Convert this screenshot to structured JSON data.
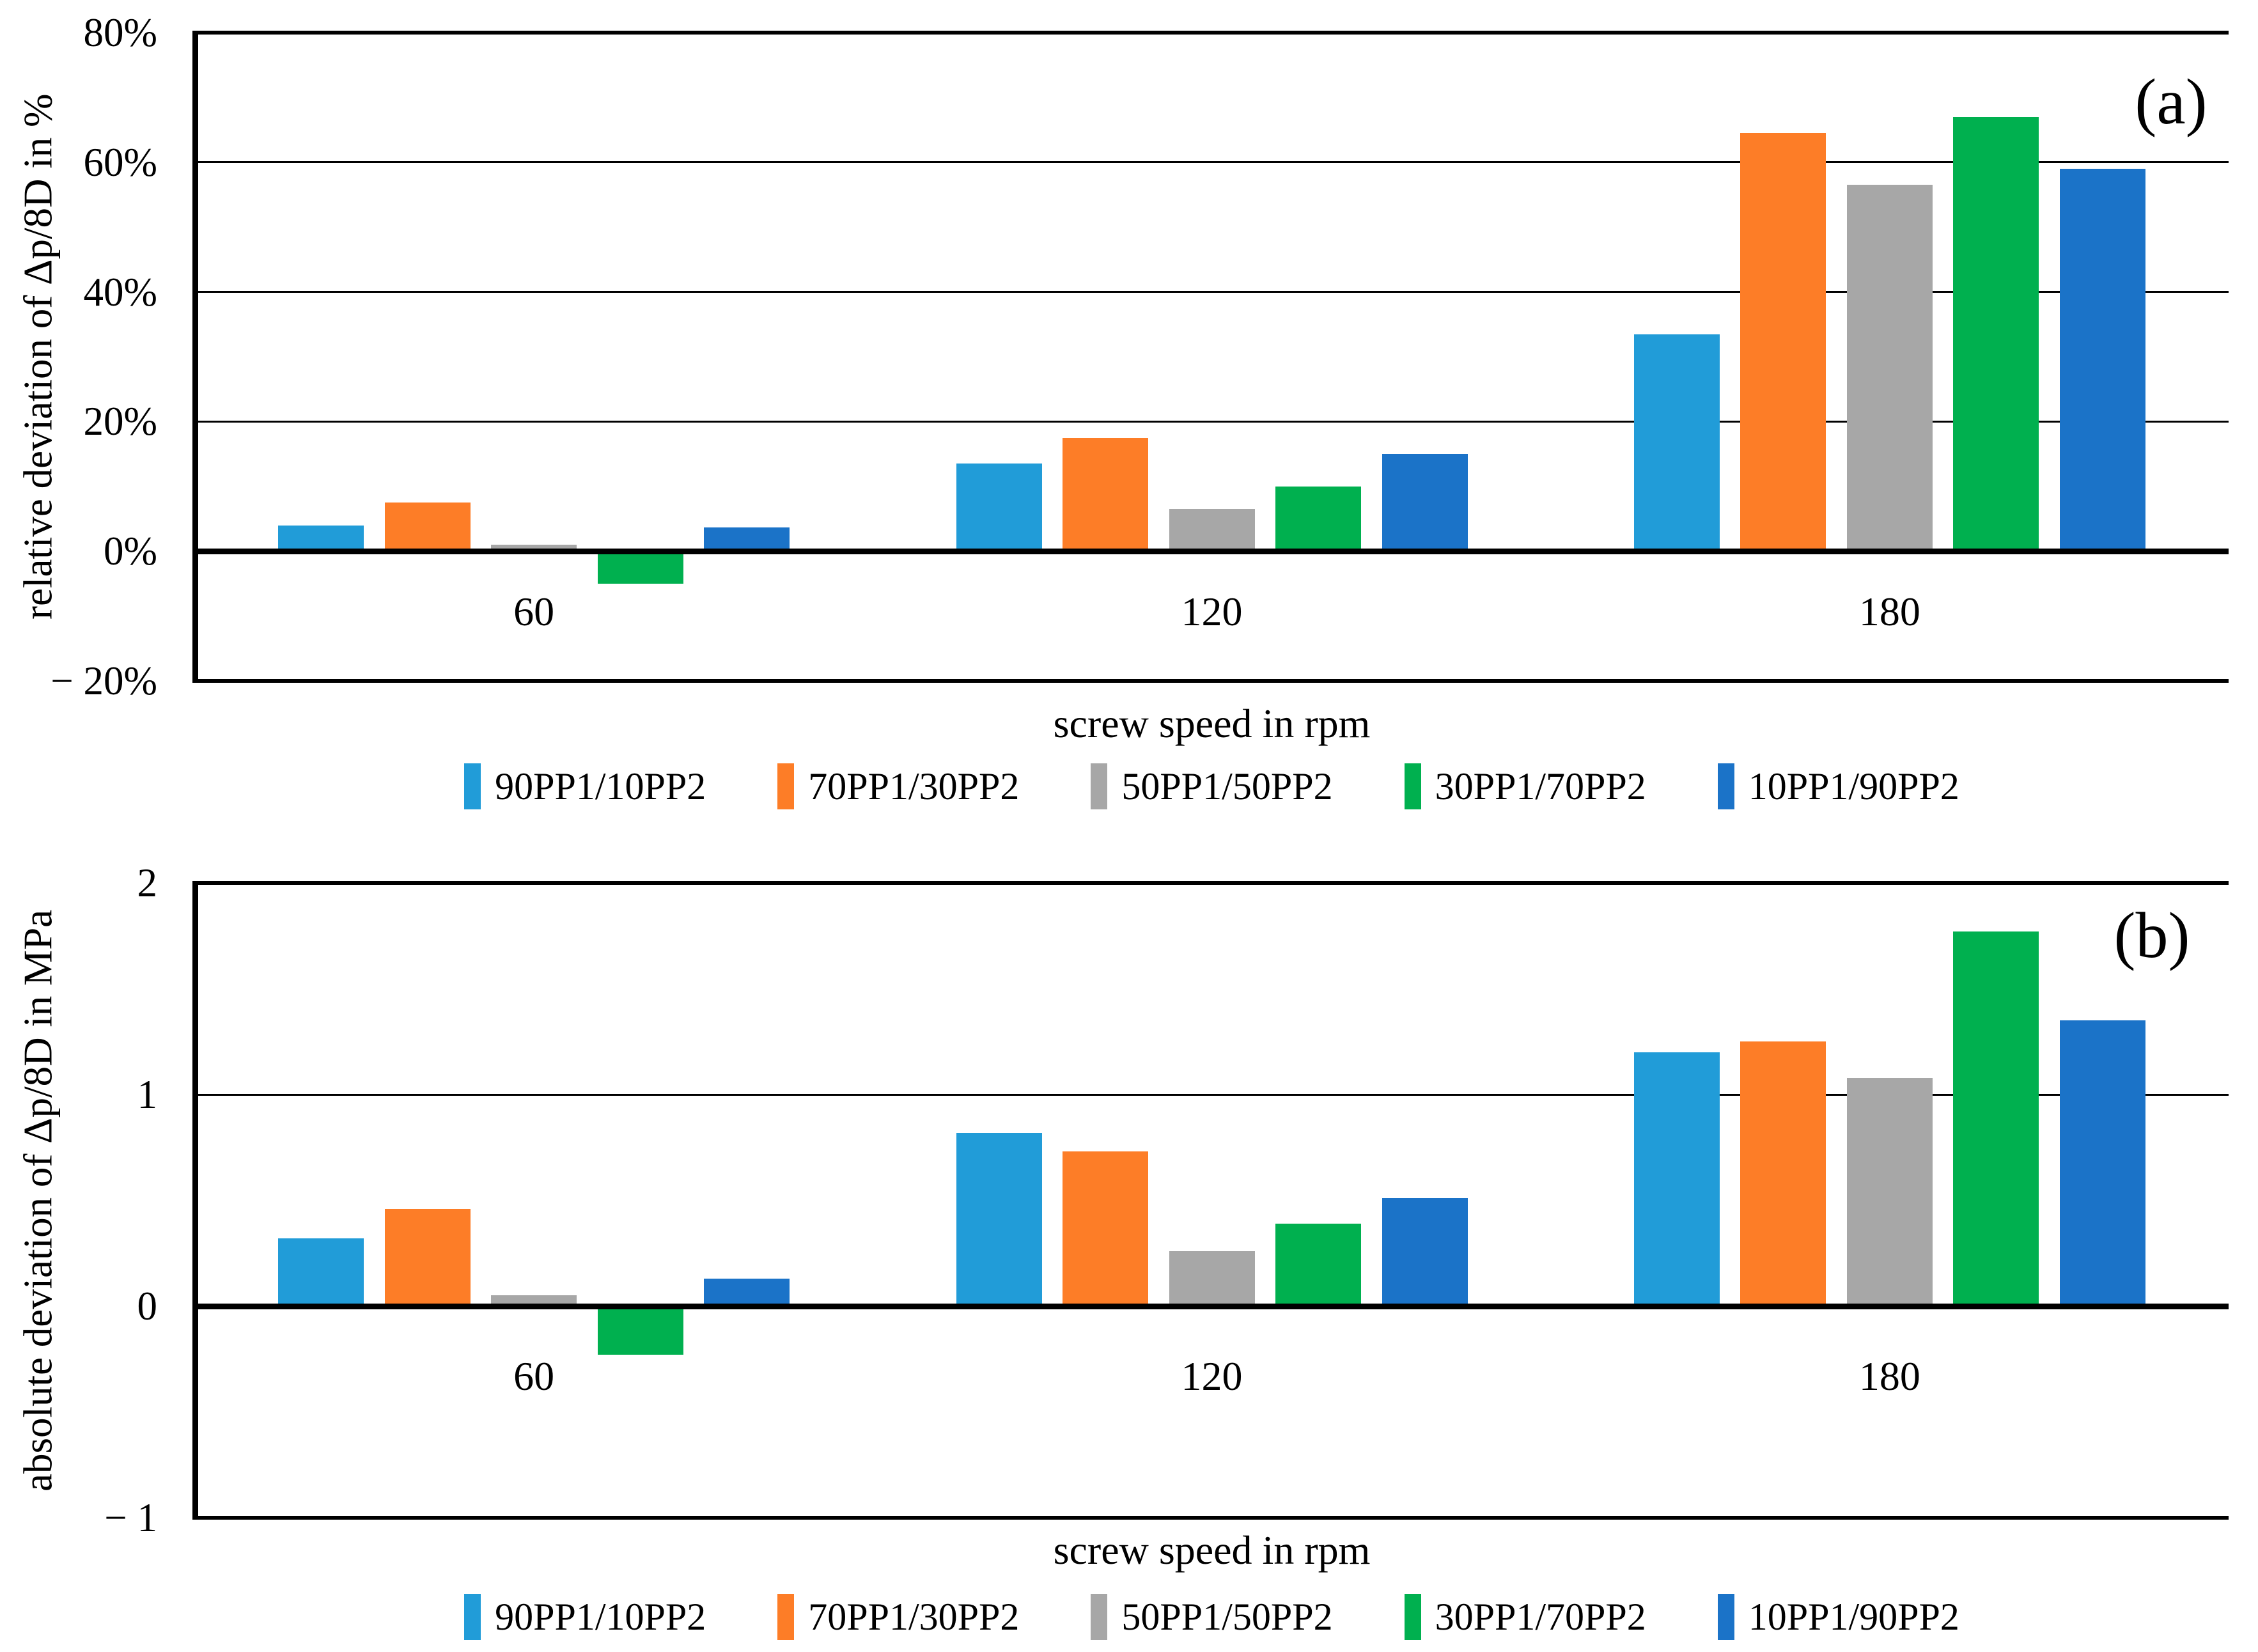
{
  "chart_data": [
    {
      "type": "bar",
      "panel": "(a)",
      "title": "",
      "xlabel": "screw speed in rpm",
      "ylabel": "relative deviation of Δp/8D in %",
      "categories": [
        "60",
        "120",
        "180"
      ],
      "series": [
        {
          "name": "90PP1/10PP2",
          "color": "#219CD8",
          "values": [
            4.0,
            13.5,
            33.5
          ]
        },
        {
          "name": "70PP1/30PP2",
          "color": "#FD7D27",
          "values": [
            7.5,
            17.5,
            64.5
          ]
        },
        {
          "name": "50PP1/50PP2",
          "color": "#A7A7A7",
          "values": [
            1.0,
            6.5,
            56.5
          ]
        },
        {
          "name": "30PP1/70PP2",
          "color": "#00B04F",
          "values": [
            -5.0,
            10.0,
            67.0
          ]
        },
        {
          "name": "10PP1/90PP2",
          "color": "#1B73C8",
          "values": [
            3.7,
            15.0,
            59.0
          ]
        }
      ],
      "ylim": [
        -20,
        80
      ],
      "ytick_step": 20,
      "ytick_labels": [
        "80%",
        "60%",
        "40%",
        "20%",
        "0%",
        "− 20%"
      ],
      "value_unit": "%",
      "grid": true,
      "legend_position": "bottom"
    },
    {
      "type": "bar",
      "panel": "(b)",
      "title": "",
      "xlabel": "screw speed in rpm",
      "ylabel": "absolute deviation of Δp/8D in MPa",
      "categories": [
        "60",
        "120",
        "180"
      ],
      "series": [
        {
          "name": "90PP1/10PP2",
          "color": "#219CD8",
          "values": [
            0.32,
            0.82,
            1.2
          ]
        },
        {
          "name": "70PP1/30PP2",
          "color": "#FD7D27",
          "values": [
            0.46,
            0.73,
            1.25
          ]
        },
        {
          "name": "50PP1/50PP2",
          "color": "#A7A7A7",
          "values": [
            0.05,
            0.26,
            1.08
          ]
        },
        {
          "name": "30PP1/70PP2",
          "color": "#00B04F",
          "values": [
            -0.23,
            0.39,
            1.77
          ]
        },
        {
          "name": "10PP1/90PP2",
          "color": "#1B73C8",
          "values": [
            0.13,
            0.51,
            1.35
          ]
        }
      ],
      "ylim": [
        -1,
        2
      ],
      "ytick_step": 1,
      "ytick_labels": [
        "2",
        "1",
        "0",
        "− 1"
      ],
      "value_unit": "MPa",
      "grid": true,
      "legend_position": "bottom"
    }
  ]
}
